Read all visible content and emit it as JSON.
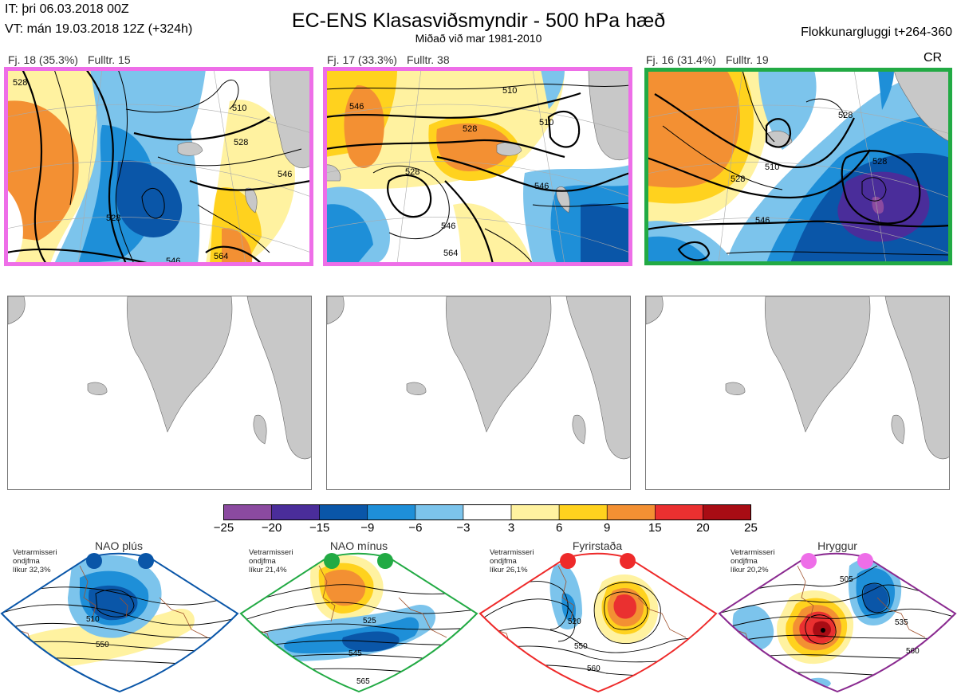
{
  "header": {
    "it": "IT: þri 06.03.2018 00Z",
    "vt": "VT: mán 19.03.2018 12Z  (+324h)",
    "title": "EC-ENS Klasasviðsmyndir - 500 hPa hæð",
    "subtitle": "Miðað við mar 1981-2010",
    "window": "Flokkunargluggi t+264-360"
  },
  "panels": [
    {
      "label": "Fj. 18 (35.3%)",
      "rep": "Fulltr. 15",
      "frame_color": "#ee6ee8",
      "contours": [
        "528",
        "510",
        "528",
        "546",
        "528",
        "546",
        "564"
      ]
    },
    {
      "label": "Fj. 17 (33.3%)",
      "rep": "Fulltr. 38",
      "frame_color": "#ee6ee8",
      "contours": [
        "510",
        "510",
        "528",
        "528",
        "546",
        "546",
        "564",
        "546"
      ]
    },
    {
      "label": "Fj. 16 (31.4%)",
      "rep": "Fulltr. 19",
      "frame_color": "#22aa44",
      "regime": "CR",
      "contours": [
        "528",
        "510",
        "528",
        "528",
        "546"
      ]
    }
  ],
  "colorbar": {
    "ticks": [
      "−25",
      "−20",
      "−15",
      "−9",
      "−6",
      "−3",
      "3",
      "6",
      "9",
      "15",
      "20",
      "25"
    ],
    "colors": [
      "#8b4aa0",
      "#4a2d9a",
      "#0a56a8",
      "#1e8fd8",
      "#7cc4ec",
      "#ffffff",
      "#fff2a0",
      "#ffd21e",
      "#f39033",
      "#ea3030",
      "#a80c14"
    ]
  },
  "regimes": [
    {
      "name": "NAO plús",
      "l1": "Vetrarmisseri",
      "l2": "ondjfma",
      "l3": "líkur 32,3%",
      "color": "#0a56a8",
      "contours": [
        "510",
        "550"
      ]
    },
    {
      "name": "NAO mínus",
      "l1": "Vetrarmisseri",
      "l2": "ondjfma",
      "l3": "líkur 21,4%",
      "color": "#22aa44",
      "contours": [
        "525",
        "545",
        "565"
      ]
    },
    {
      "name": "Fyrirstaða",
      "l1": "Vetrarmisseri",
      "l2": "ondjfma",
      "l3": "líkur 26,1%",
      "color": "#ee2a2a",
      "contours": [
        "520",
        "550",
        "560"
      ]
    },
    {
      "name": "Hryggur",
      "l1": "Vetrarmisseri",
      "l2": "ondjfma",
      "l3": "líkur 20,2%",
      "color": "#8a2a90",
      "contours": [
        "505",
        "535",
        "560"
      ]
    }
  ]
}
